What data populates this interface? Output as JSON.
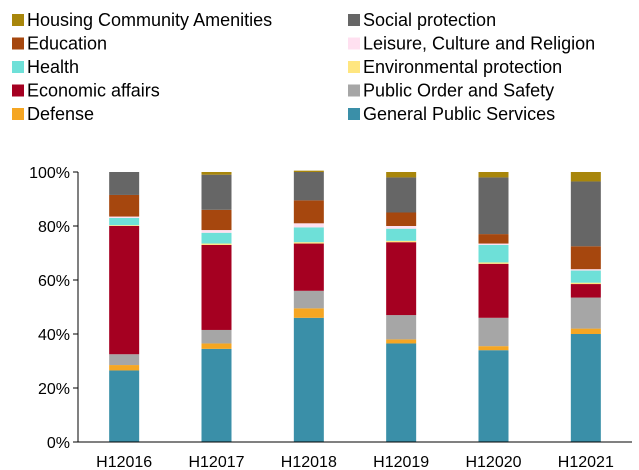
{
  "chart_data": {
    "type": "bar",
    "stacked": true,
    "categories": [
      "H12016",
      "H12017",
      "H12018",
      "H12019",
      "H12020",
      "H12021"
    ],
    "ylim": [
      0,
      100
    ],
    "y_ticks": [
      "0%",
      "20%",
      "40%",
      "60%",
      "80%",
      "100%"
    ],
    "legend_position": "top",
    "grid": false,
    "series": [
      {
        "name": "General Public Services",
        "color": "#3A8FA8",
        "values": [
          26.5,
          34.5,
          46,
          36.5,
          34,
          40
        ]
      },
      {
        "name": "Defense",
        "color": "#F5A623",
        "values": [
          2,
          2,
          3.5,
          1.5,
          1.5,
          2
        ]
      },
      {
        "name": "Public Order and Safety",
        "color": "#A6A6A6",
        "values": [
          4,
          5,
          6.5,
          9,
          10.5,
          11.5
        ]
      },
      {
        "name": "Economic affairs",
        "color": "#A50021",
        "values": [
          47.5,
          31.5,
          17.5,
          27,
          20,
          5
        ]
      },
      {
        "name": "Environmental protection",
        "color": "#FFE680",
        "values": [
          0.3,
          0.5,
          0.5,
          0.5,
          0.5,
          0.5
        ]
      },
      {
        "name": "Health",
        "color": "#6EE0D8",
        "values": [
          2.7,
          4,
          5.5,
          4.5,
          6.5,
          4.5
        ]
      },
      {
        "name": "Leisure, Culture and Religion",
        "color": "#FFE0F0",
        "values": [
          0.5,
          1,
          1.5,
          1,
          0.5,
          0.5
        ]
      },
      {
        "name": "Education",
        "color": "#A6470E",
        "values": [
          8,
          7.5,
          8.5,
          5,
          3.5,
          8.5
        ]
      },
      {
        "name": "Social protection",
        "color": "#666666",
        "values": [
          8.5,
          13,
          10.5,
          13,
          21,
          24
        ]
      },
      {
        "name": "Housing Community Amenities",
        "color": "#A8860B",
        "values": [
          0,
          1,
          0.5,
          2,
          2,
          3.5
        ]
      }
    ],
    "legend_order": [
      "Housing Community Amenities",
      "Social protection",
      "Education",
      "Leisure, Culture and Religion",
      "Health",
      "Environmental protection",
      "Economic affairs",
      "Public Order and Safety",
      "Defense",
      "General Public Services"
    ]
  }
}
